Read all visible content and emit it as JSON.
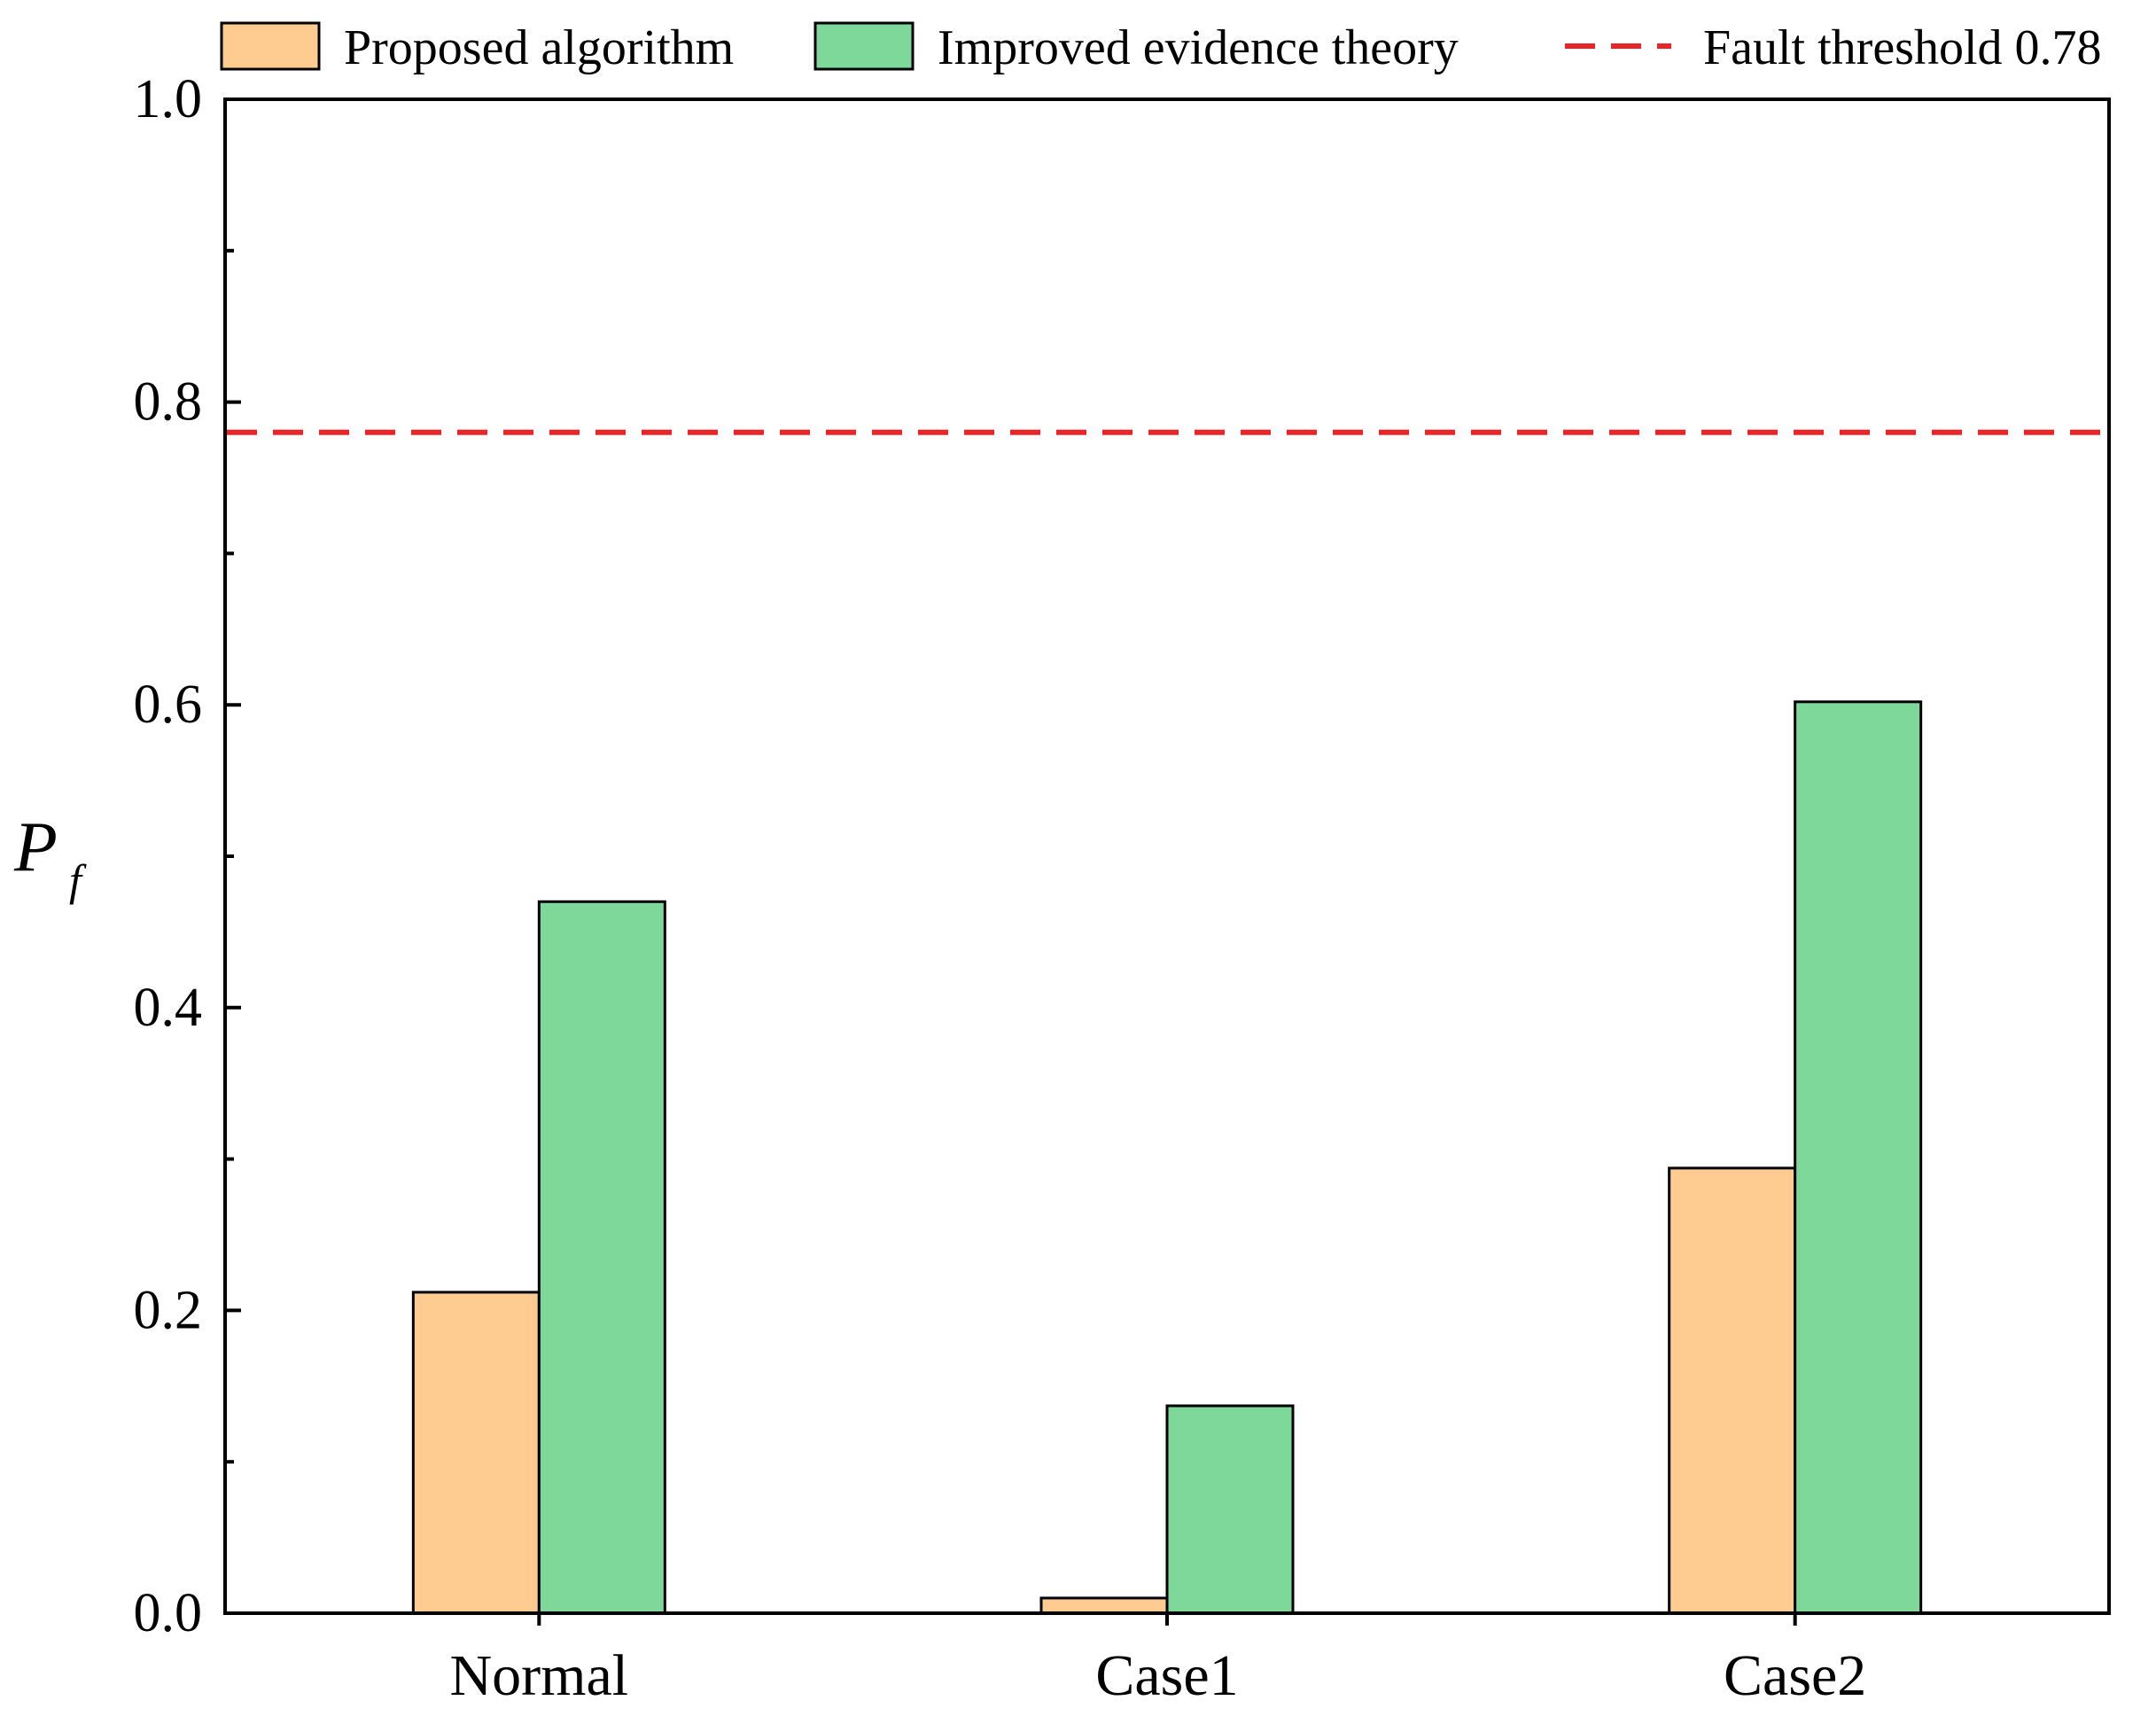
{
  "chart_data": {
    "type": "bar",
    "title": "",
    "xlabel": "",
    "ylabel": "P",
    "ylabel_subscript": "f",
    "ylim": [
      0.0,
      1.0
    ],
    "yticks": [
      "0.0",
      "0.2",
      "0.4",
      "0.6",
      "0.8",
      "1.0"
    ],
    "ytick_values": [
      0.0,
      0.2,
      0.4,
      0.6,
      0.8,
      1.0
    ],
    "yminor_values": [
      0.1,
      0.3,
      0.5,
      0.7,
      0.9
    ],
    "categories": [
      "Normal",
      "Case1",
      "Case2"
    ],
    "series": [
      {
        "name": "Proposed algorithm",
        "color": "#FECC91",
        "values": [
          0.212,
          0.01,
          0.294
        ]
      },
      {
        "name": "Improved evidence theory",
        "color": "#7DD89A",
        "values": [
          0.47,
          0.137,
          0.602
        ]
      }
    ],
    "threshold": {
      "label": "Fault threshold 0.78",
      "value": 0.78,
      "color": "#E8262A",
      "style": "dashed"
    },
    "grid": false,
    "legend_position": "top"
  }
}
